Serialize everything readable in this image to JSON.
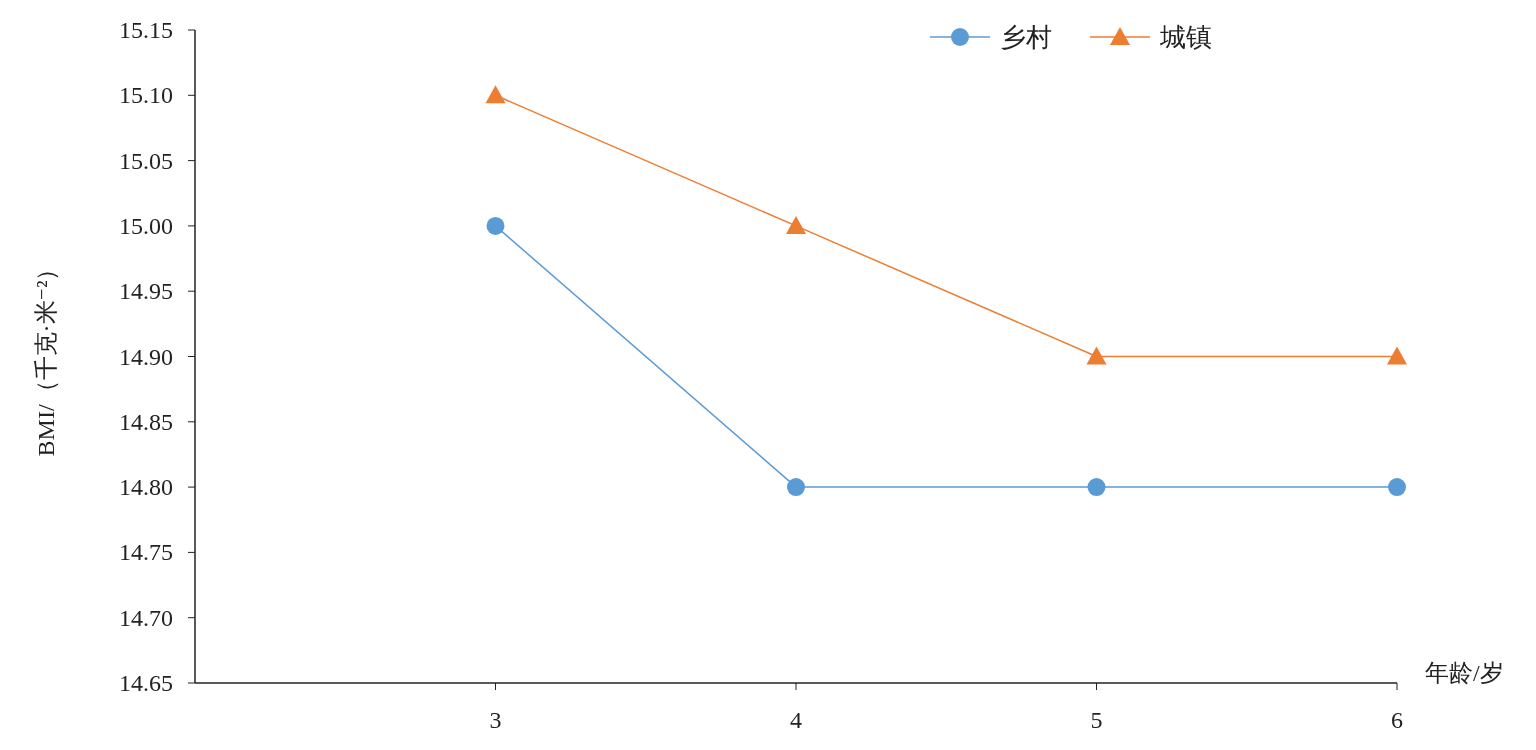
{
  "chart_data": {
    "type": "line",
    "xlabel": "年龄/岁",
    "ylabel": "BMI/（千克·米⁻²）",
    "x": [
      3,
      4,
      5,
      6
    ],
    "xlim": [
      2,
      6
    ],
    "xticks": [
      3,
      4,
      5,
      6
    ],
    "ylim": [
      14.65,
      15.15
    ],
    "yticks": [
      {
        "value": 14.65,
        "label": "14.65"
      },
      {
        "value": 14.7,
        "label": "14.70"
      },
      {
        "value": 14.75,
        "label": "14.75"
      },
      {
        "value": 14.8,
        "label": "14.80"
      },
      {
        "value": 14.85,
        "label": "14.85"
      },
      {
        "value": 14.9,
        "label": "14.90"
      },
      {
        "value": 14.95,
        "label": "14.95"
      },
      {
        "value": 15.0,
        "label": "15.00"
      },
      {
        "value": 15.05,
        "label": "15.05"
      },
      {
        "value": 15.1,
        "label": "15.10"
      },
      {
        "value": 15.15,
        "label": "15.15"
      }
    ],
    "legend": "top",
    "series": [
      {
        "name": "乡村",
        "color": "#5b9bd5",
        "marker": "circle",
        "values": [
          15.0,
          14.8,
          14.8,
          14.8
        ]
      },
      {
        "name": "城镇",
        "color": "#ed7d31",
        "marker": "triangle",
        "values": [
          15.1,
          15.0,
          14.9,
          14.9
        ]
      }
    ]
  }
}
